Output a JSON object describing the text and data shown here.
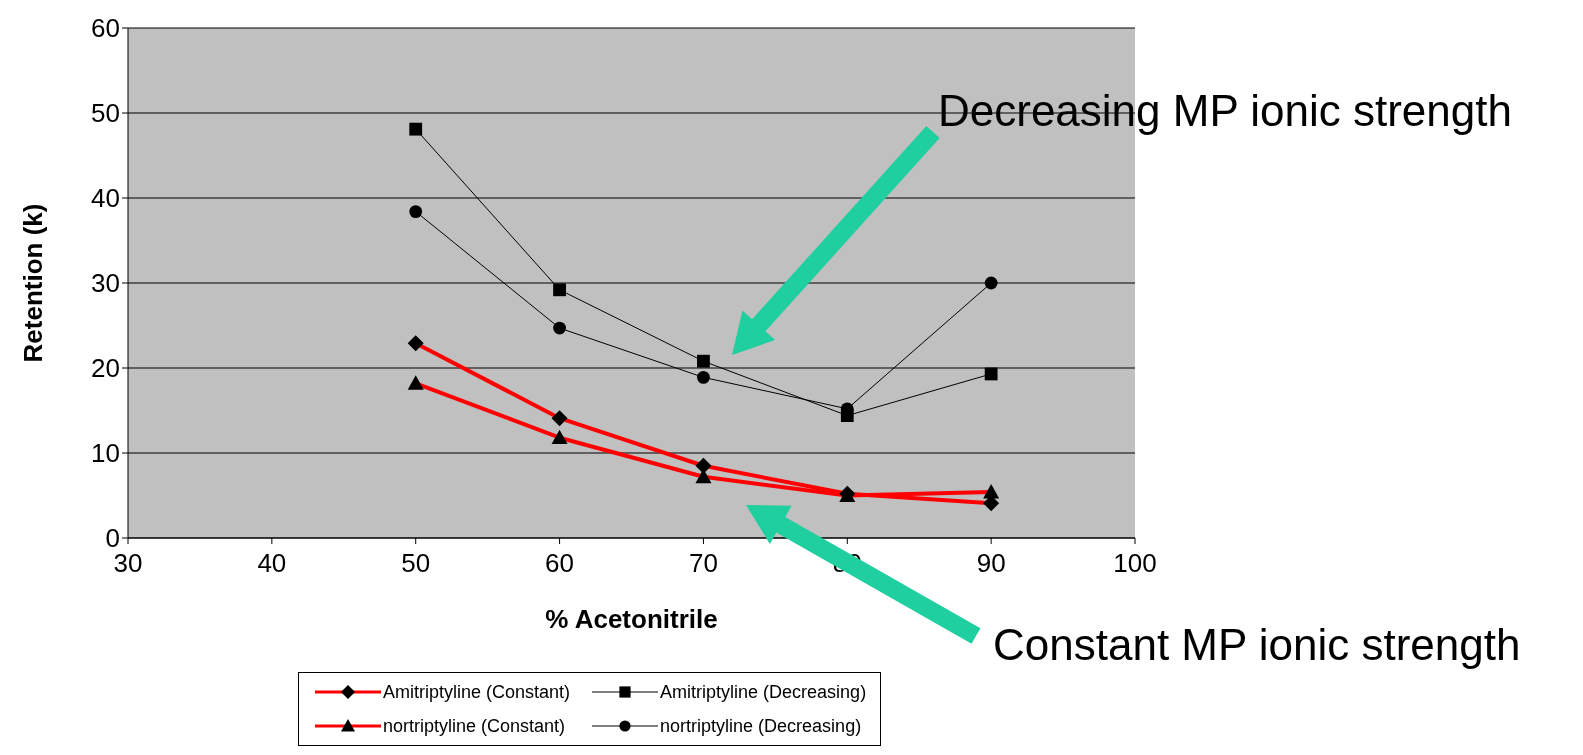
{
  "chart_data": {
    "type": "line",
    "xlabel": "% Acetonitrile",
    "ylabel": "Retention (k)",
    "x": [
      50,
      60,
      70,
      80,
      90
    ],
    "series": [
      {
        "name": "Amitriptyline (Constant)",
        "color": "#ff0000",
        "marker": "diamond",
        "values": [
          22.9,
          14.1,
          8.5,
          5.2,
          4.1
        ]
      },
      {
        "name": "nortriptyline (Constant)",
        "color": "#ff0000",
        "marker": "triangle",
        "values": [
          18.2,
          11.8,
          7.2,
          5.0,
          5.4
        ]
      },
      {
        "name": "Amitriptyline (Decreasing)",
        "color": "#000000",
        "marker": "square",
        "values": [
          48.1,
          29.2,
          20.8,
          14.4,
          19.3
        ]
      },
      {
        "name": "nortriptyline (Decreasing)",
        "color": "#000000",
        "marker": "circle",
        "values": [
          38.4,
          24.7,
          18.9,
          15.2,
          30.0
        ]
      }
    ],
    "xlim": [
      30,
      100
    ],
    "xticks": [
      30,
      40,
      50,
      60,
      70,
      80,
      90,
      100
    ],
    "ylim": [
      0,
      60
    ],
    "yticks": [
      0,
      10,
      20,
      30,
      40,
      50,
      60
    ],
    "grid": "y",
    "legend": "bottom",
    "annotations": [
      "Decreasing MP ionic strength",
      "Constant MP ionic strength"
    ]
  }
}
